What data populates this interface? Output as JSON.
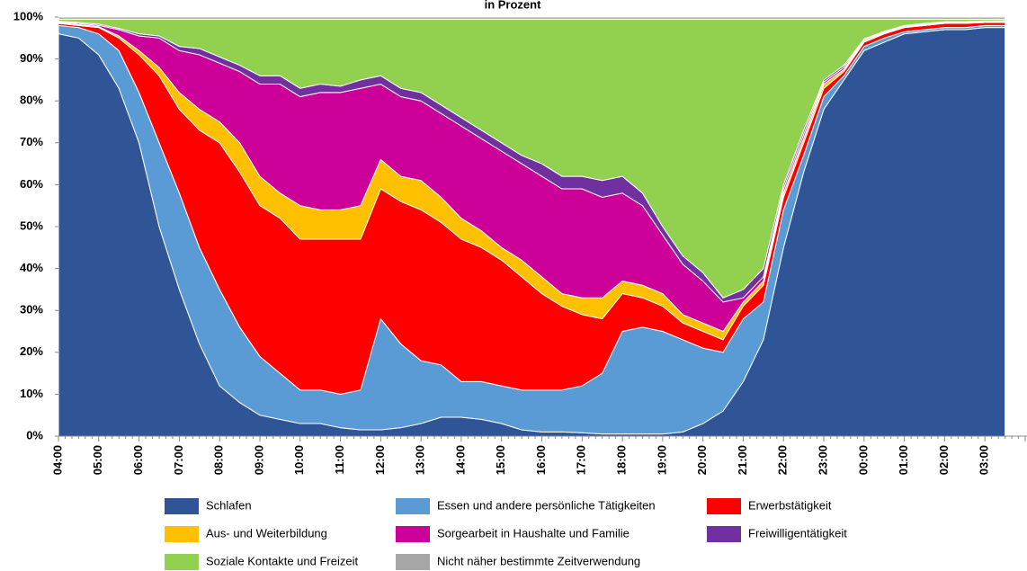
{
  "chart_data": {
    "type": "stacked_area",
    "title": "in Prozent",
    "categories": [
      "04:00",
      null,
      "05:00",
      null,
      "06:00",
      null,
      "07:00",
      null,
      "08:00",
      null,
      "09:00",
      null,
      "10:00",
      null,
      "11:00",
      null,
      "12:00",
      null,
      "13:00",
      null,
      "14:00",
      null,
      "15:00",
      null,
      "16:00",
      null,
      "17:00",
      null,
      "18:00",
      null,
      "19:00",
      null,
      "20:00",
      null,
      "21:00",
      null,
      "22:00",
      null,
      "23:00",
      null,
      "00:00",
      null,
      "01:00",
      null,
      "02:00",
      null,
      "03:00",
      null
    ],
    "ylim": [
      0,
      100
    ],
    "yticks": [
      {
        "value": 0,
        "label": "0%"
      },
      {
        "value": 10,
        "label": "10%"
      },
      {
        "value": 20,
        "label": "20%"
      },
      {
        "value": 30,
        "label": "30%"
      },
      {
        "value": 40,
        "label": "40%"
      },
      {
        "value": 50,
        "label": "50%"
      },
      {
        "value": 60,
        "label": "60%"
      },
      {
        "value": 70,
        "label": "70%"
      },
      {
        "value": 80,
        "label": "80%"
      },
      {
        "value": 90,
        "label": "90%"
      },
      {
        "value": 100,
        "label": "100%"
      }
    ],
    "grid": false,
    "series": [
      {
        "name": "Schlafen",
        "color": "#2f5597",
        "values": [
          96,
          95,
          91,
          83,
          70,
          50,
          35,
          22,
          12,
          8,
          5,
          4,
          3,
          3,
          2,
          1.5,
          1.5,
          2,
          3,
          4.5,
          4.5,
          4,
          3,
          1.5,
          1,
          1,
          0.8,
          0.5,
          0.5,
          0.5,
          0.5,
          1,
          3,
          6,
          13,
          23,
          45,
          63,
          78,
          85,
          92,
          94,
          96,
          96.5,
          97,
          97,
          97.5,
          97.5
        ]
      },
      {
        "name": "Essen und andere persönliche Tätigkeiten",
        "color": "#5b9bd5",
        "values": [
          2,
          2.5,
          5,
          9,
          12,
          20,
          23,
          23,
          23,
          18,
          14,
          11,
          8,
          8,
          8,
          9.5,
          26.5,
          20,
          15,
          12.5,
          8.5,
          9,
          9,
          9.5,
          10,
          10,
          11.2,
          14.5,
          24.5,
          25.5,
          24.5,
          22,
          18,
          14,
          15,
          9,
          9,
          4,
          3,
          1,
          1,
          1,
          0.5,
          0.5,
          0.5,
          0.5,
          0.5,
          0.5
        ]
      },
      {
        "name": "Erwerbstätigkeit",
        "color": "#ff0000",
        "values": [
          0.5,
          0.5,
          1.5,
          3,
          9,
          16,
          20,
          28,
          35,
          37,
          36,
          37,
          36,
          36,
          37,
          36,
          31,
          34,
          36,
          34,
          34,
          32,
          30,
          27,
          23,
          20,
          17,
          13,
          9,
          7,
          6,
          4,
          4,
          3,
          3,
          4,
          3,
          3,
          2,
          1,
          1,
          1,
          1,
          1,
          1,
          1,
          0.7,
          0.7
        ]
      },
      {
        "name": "Aus- und Weiterbildung",
        "color": "#ffc000",
        "values": [
          0.1,
          0.2,
          0.2,
          0.5,
          1,
          2,
          4,
          5,
          5,
          7,
          7,
          6,
          8,
          7,
          7,
          8,
          7,
          6,
          7,
          6,
          5,
          4,
          3,
          4,
          4,
          3,
          4,
          5,
          3,
          3,
          3,
          2,
          2,
          2,
          1,
          1,
          1,
          1,
          1,
          0.5,
          0.3,
          0.2,
          0.2,
          0.2,
          0.1,
          0.1,
          0.1,
          0.1
        ]
      },
      {
        "name": "Sorgearbeit in Haushalte und Familie",
        "color": "#cc0099",
        "values": [
          0.2,
          0.3,
          0.3,
          1.5,
          3.5,
          7,
          10,
          13,
          14,
          17,
          22,
          26,
          26,
          28,
          28,
          28,
          18,
          19,
          19,
          20,
          22,
          22,
          23,
          23,
          24,
          25,
          26,
          24,
          21,
          19,
          14,
          12,
          10,
          7,
          1,
          1,
          1,
          1,
          0.5,
          0.5,
          0.3,
          0.2,
          0.2,
          0.2,
          0.2,
          0.2,
          0.2,
          0.2
        ]
      },
      {
        "name": "Freiwilligentätigkeit",
        "color": "#7030a0",
        "values": [
          0.2,
          0.2,
          0.3,
          0.3,
          0.5,
          0.5,
          1,
          1.5,
          1.5,
          1.5,
          2,
          2,
          2,
          2,
          1.5,
          2,
          2,
          2,
          2,
          2,
          2,
          2,
          2,
          2,
          3,
          3,
          3,
          4,
          4,
          3,
          2,
          2,
          2,
          1,
          2,
          2,
          1,
          1,
          0.5,
          0.5,
          0.2,
          0.2,
          0.1,
          0.1,
          0.1,
          0.1,
          0.1,
          0.1
        ]
      },
      {
        "name": "Soziale Kontakte und Freizeit",
        "color": "#92d050",
        "values": [
          0.5,
          0.8,
          1.2,
          2.2,
          3.5,
          4,
          6.5,
          7,
          9,
          11,
          13.5,
          13.5,
          16.5,
          15.5,
          16,
          14.5,
          13.5,
          16.5,
          17.5,
          20.5,
          23.5,
          26.5,
          29.5,
          32.5,
          34.5,
          37.5,
          37.5,
          38.5,
          37.5,
          41.5,
          49.5,
          56.5,
          60.5,
          66.5,
          64.5,
          59.5,
          39.5,
          26.5,
          14.5,
          11,
          4.7,
          2.9,
          1.5,
          1,
          0.6,
          0.6,
          0.4,
          0.4
        ]
      },
      {
        "name": "Nicht näher bestimmte Zeitverwendung",
        "color": "#a6a6a6",
        "values": [
          0.5,
          0.5,
          0.5,
          0.5,
          0.5,
          0.5,
          0.5,
          0.5,
          0.5,
          0.5,
          0.5,
          0.5,
          0.5,
          0.5,
          0.5,
          0.5,
          0.5,
          0.5,
          0.5,
          0.5,
          0.5,
          0.5,
          0.5,
          0.5,
          0.5,
          0.5,
          0.5,
          0.5,
          0.5,
          0.5,
          0.5,
          0.5,
          0.5,
          0.5,
          0.5,
          0.5,
          0.5,
          0.5,
          0.5,
          0.5,
          0.5,
          0.5,
          0.5,
          0.5,
          0.5,
          0.5,
          0.5,
          0.5
        ]
      }
    ]
  }
}
